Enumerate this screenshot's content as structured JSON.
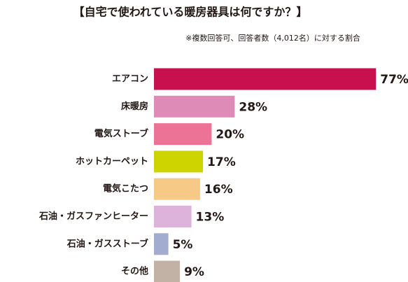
{
  "chart_data": {
    "type": "bar",
    "orientation": "horizontal",
    "title": "【自宅で使われている暖房器具は何ですか？】",
    "subtitle": "※複数回答可、回答者数（4,012名）に対する割合",
    "categories": [
      "エアコン",
      "床暖房",
      "電気ストーブ",
      "ホットカーペット",
      "電気こたつ",
      "石油・ガスファンヒーター",
      "石油・ガスストーブ",
      "その他"
    ],
    "values": [
      77,
      28,
      20,
      17,
      16,
      13,
      5,
      9
    ],
    "value_labels": [
      "77%",
      "28%",
      "20%",
      "17%",
      "16%",
      "13%",
      "5%",
      "9%"
    ],
    "colors": [
      "#c8104e",
      "#de8cb7",
      "#ec7396",
      "#cdd400",
      "#f7c987",
      "#ddb3dc",
      "#a2acd0",
      "#c2b2a6"
    ]
  }
}
